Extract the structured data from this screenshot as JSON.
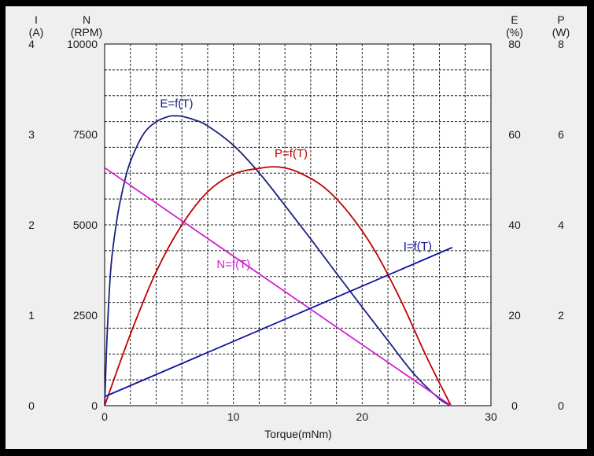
{
  "chart_data": {
    "type": "line",
    "xlabel": "Torque(mNm)",
    "xlim": [
      0,
      30
    ],
    "x_ticks": [
      "0",
      "10",
      "20",
      "30"
    ],
    "grid": true,
    "axes": {
      "current": {
        "symbol": "I",
        "unit": "(A)",
        "range": [
          0,
          4
        ],
        "ticks": [
          "0",
          "1",
          "2",
          "3",
          "4"
        ],
        "side": "left"
      },
      "speed": {
        "symbol": "N",
        "unit": "(RPM)",
        "range": [
          0,
          10000
        ],
        "ticks": [
          "0",
          "2500",
          "5000",
          "7500",
          "10000"
        ],
        "side": "left"
      },
      "efficiency": {
        "symbol": "E",
        "unit": "(%)",
        "range": [
          0,
          80
        ],
        "ticks": [
          "0",
          "20",
          "40",
          "60",
          "80"
        ],
        "side": "right"
      },
      "power": {
        "symbol": "P",
        "unit": "(W)",
        "range": [
          0,
          8
        ],
        "ticks": [
          "0",
          "2",
          "4",
          "6",
          "8"
        ],
        "side": "right"
      }
    },
    "series": [
      {
        "name": "E=f(T)",
        "axis": "efficiency",
        "color": "#1a237e",
        "x": [
          0,
          0.2,
          0.5,
          1,
          1.5,
          2,
          3,
          4,
          5,
          5.5,
          6,
          7,
          8,
          10,
          12,
          14,
          16,
          18,
          20,
          22,
          24,
          26,
          26.9
        ],
        "y": [
          0,
          16,
          31,
          42,
          49,
          54,
          60,
          62.8,
          64,
          64.1,
          64,
          63.2,
          61.9,
          57.6,
          51.5,
          44.3,
          36.9,
          29.3,
          21.8,
          14.4,
          7.1,
          1.5,
          0
        ]
      },
      {
        "name": "P=f(T)",
        "axis": "power",
        "color": "#c00000",
        "x": [
          0,
          2,
          4,
          6,
          8,
          10,
          12,
          13.5,
          15,
          17,
          19,
          21,
          23,
          25,
          26.9
        ],
        "y": [
          0,
          1.58,
          2.96,
          4.0,
          4.73,
          5.12,
          5.25,
          5.28,
          5.17,
          4.84,
          4.25,
          3.42,
          2.33,
          1.08,
          0
        ]
      },
      {
        "name": "N=f(T)",
        "axis": "speed",
        "color": "#d020d0",
        "x": [
          0,
          26.9
        ],
        "y": [
          6580,
          0
        ]
      },
      {
        "name": "I=f(T)",
        "axis": "current",
        "color": "#1010a0",
        "x": [
          0,
          27
        ],
        "y": [
          0.1,
          1.75
        ]
      }
    ]
  }
}
